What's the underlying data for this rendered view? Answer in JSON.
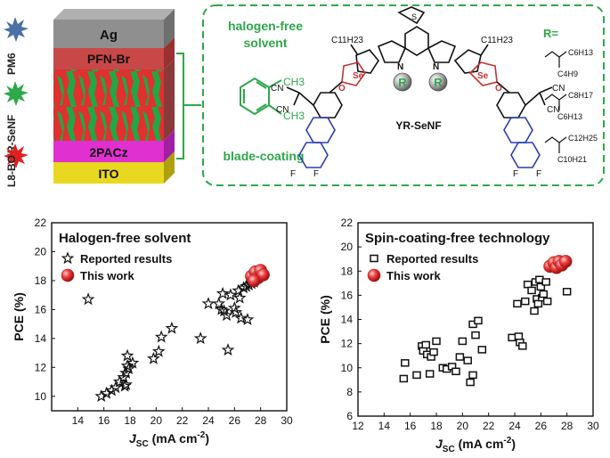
{
  "device": {
    "layers": [
      {
        "label": "Ag",
        "color": "#8f8f8f"
      },
      {
        "label": "PFN-Br",
        "color": "#c84040"
      },
      {
        "label": "",
        "color": "#d03030"
      },
      {
        "label": "2PACz",
        "color": "#e030d0"
      },
      {
        "label": "ITO",
        "color": "#e8d820"
      }
    ],
    "side_labels": [
      {
        "label": "PM6",
        "color": "#4a6fa5"
      },
      {
        "label": "YR-SeNF",
        "color": "#2ea84a"
      },
      {
        "label": "L8-BO",
        "color": "#e02020"
      }
    ]
  },
  "molecule_panel": {
    "solvent_label_line1": "halogen-free",
    "solvent_label_line2": "solvent",
    "process_label": "blade-coating",
    "solvent_ch3_a": "CH3",
    "solvent_ch3_b": "CH3",
    "molecule_name": "YR-SeNF",
    "chain_left": "C11H23",
    "chain_right": "C11H23",
    "r_group": "R",
    "r_header": "R=",
    "r_options": [
      {
        "a": "C6H13",
        "b": "C4H9"
      },
      {
        "a": "C8H17",
        "b": "C6H13"
      },
      {
        "a": "C12H25",
        "b": "C10H21"
      }
    ],
    "atoms": {
      "se": "Se",
      "n": "N",
      "s": "S",
      "o": "O",
      "f": "F",
      "cn": "CN"
    },
    "accent_color": "#2ea84a"
  },
  "chart_data": [
    {
      "type": "scatter",
      "title": "Halogen-free solvent",
      "xlabel": "J",
      "xlabel_sub": "SC",
      "xlabel_units": " (mA cm",
      "xlabel_sup": "-2",
      "xlabel_close": ")",
      "ylabel": "PCE (%)",
      "xlim": [
        12,
        30
      ],
      "ylim": [
        9,
        22
      ],
      "xticks": [
        14,
        16,
        18,
        20,
        22,
        24,
        26,
        28,
        30
      ],
      "yticks": [
        10,
        12,
        14,
        16,
        18,
        20,
        22
      ],
      "series": [
        {
          "name": "Reported results",
          "marker": "star",
          "points": [
            [
              14.8,
              16.7
            ],
            [
              15.8,
              10.0
            ],
            [
              16.2,
              10.2
            ],
            [
              16.6,
              10.4
            ],
            [
              16.9,
              10.6
            ],
            [
              17.2,
              11.0
            ],
            [
              17.5,
              11.3
            ],
            [
              17.7,
              10.8
            ],
            [
              17.7,
              11.6
            ],
            [
              17.8,
              12.1
            ],
            [
              17.8,
              12.8
            ],
            [
              17.9,
              11.9
            ],
            [
              17.6,
              10.7
            ],
            [
              18.2,
              12.3
            ],
            [
              19.8,
              12.6
            ],
            [
              20.2,
              13.1
            ],
            [
              20.4,
              14.1
            ],
            [
              21.2,
              14.7
            ],
            [
              23.4,
              14.0
            ],
            [
              24.0,
              16.4
            ],
            [
              24.8,
              16.4
            ],
            [
              25.0,
              16.0
            ],
            [
              25.1,
              17.1
            ],
            [
              25.2,
              15.9
            ],
            [
              25.4,
              15.6
            ],
            [
              25.5,
              13.2
            ],
            [
              25.7,
              17.0
            ],
            [
              26.0,
              16.1
            ],
            [
              26.1,
              15.8
            ],
            [
              26.3,
              17.3
            ],
            [
              26.4,
              16.8
            ],
            [
              26.5,
              15.4
            ],
            [
              26.7,
              17.5
            ],
            [
              26.9,
              17.6
            ],
            [
              27.0,
              15.3
            ],
            [
              27.1,
              17.7
            ],
            [
              27.3,
              17.8
            ],
            [
              27.5,
              17.9
            ]
          ]
        },
        {
          "name": "This work",
          "marker": "sphere",
          "points": [
            [
              27.3,
              18.3
            ],
            [
              27.6,
              18.6
            ],
            [
              27.8,
              18.2
            ],
            [
              28.0,
              18.7
            ],
            [
              28.2,
              18.4
            ],
            [
              27.5,
              18.0
            ]
          ]
        }
      ],
      "legend": "top-left"
    },
    {
      "type": "scatter",
      "title": "Spin-coating-free technology",
      "xlabel": "J",
      "xlabel_sub": "SC",
      "xlabel_units": " (mA cm",
      "xlabel_sup": "-2",
      "xlabel_close": ")",
      "ylabel": "PCE (%)",
      "xlim": [
        12,
        30
      ],
      "ylim": [
        6,
        22
      ],
      "xticks": [
        12,
        14,
        16,
        18,
        20,
        22,
        24,
        26,
        28,
        30
      ],
      "yticks": [
        6,
        8,
        10,
        12,
        14,
        16,
        18,
        20,
        22
      ],
      "series": [
        {
          "name": "Reported results",
          "marker": "square",
          "points": [
            [
              15.5,
              9.1
            ],
            [
              15.6,
              10.4
            ],
            [
              16.5,
              9.4
            ],
            [
              16.9,
              11.8
            ],
            [
              17.0,
              11.4
            ],
            [
              17.2,
              11.9
            ],
            [
              17.3,
              11.1
            ],
            [
              17.5,
              9.5
            ],
            [
              17.6,
              10.9
            ],
            [
              17.8,
              11.3
            ],
            [
              18.0,
              12.2
            ],
            [
              18.5,
              10.0
            ],
            [
              18.8,
              9.9
            ],
            [
              19.2,
              10.1
            ],
            [
              19.5,
              9.7
            ],
            [
              19.8,
              10.9
            ],
            [
              20.0,
              12.2
            ],
            [
              20.4,
              10.6
            ],
            [
              20.6,
              8.8
            ],
            [
              20.8,
              9.4
            ],
            [
              20.8,
              13.6
            ],
            [
              21.0,
              12.7
            ],
            [
              21.2,
              13.9
            ],
            [
              21.5,
              11.5
            ],
            [
              23.8,
              12.5
            ],
            [
              24.2,
              15.3
            ],
            [
              24.3,
              12.6
            ],
            [
              24.4,
              12.1
            ],
            [
              24.6,
              11.8
            ],
            [
              24.8,
              15.5
            ],
            [
              25.0,
              16.9
            ],
            [
              25.3,
              16.4
            ],
            [
              25.5,
              14.7
            ],
            [
              25.6,
              17.1
            ],
            [
              25.7,
              15.7
            ],
            [
              25.8,
              15.3
            ],
            [
              25.9,
              17.3
            ],
            [
              26.0,
              16.7
            ],
            [
              26.1,
              15.8
            ],
            [
              26.2,
              16.1
            ],
            [
              26.4,
              17.1
            ],
            [
              26.5,
              15.5
            ],
            [
              28.0,
              16.3
            ]
          ]
        },
        {
          "name": "This work",
          "marker": "sphere",
          "points": [
            [
              26.7,
              18.4
            ],
            [
              27.0,
              18.7
            ],
            [
              27.2,
              18.3
            ],
            [
              27.4,
              18.8
            ],
            [
              27.6,
              18.5
            ],
            [
              27.9,
              18.8
            ]
          ]
        }
      ],
      "legend": "top-left"
    }
  ]
}
